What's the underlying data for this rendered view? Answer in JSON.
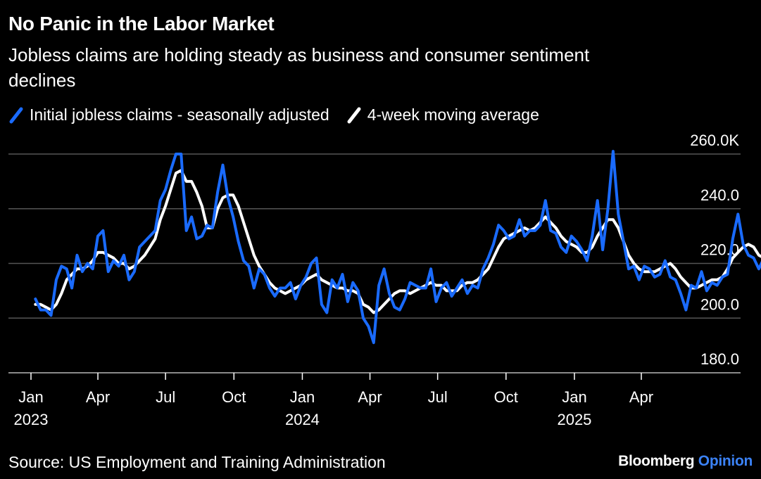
{
  "title": "No Panic in the Labor Market",
  "subtitle": "Jobless claims are holding steady as business and consumer sentiment declines",
  "source": "Source: US Employment and Training Administration",
  "brand": {
    "name": "Bloomberg",
    "suffix": "Opinion"
  },
  "colors": {
    "claims": "#1a6bff",
    "average": "#ffffff",
    "grid": "#555555",
    "background": "#000000"
  },
  "chart_data": {
    "type": "line",
    "grid": true,
    "legend_placement": "top-left",
    "ylim": [
      180,
      260
    ],
    "y_ticks": [
      {
        "value": 260,
        "label": "260.0K"
      },
      {
        "value": 240,
        "label": "240.0"
      },
      {
        "value": 220,
        "label": "220.0"
      },
      {
        "value": 200,
        "label": "200.0"
      },
      {
        "value": 180,
        "label": "180.0"
      }
    ],
    "x_ticks": [
      {
        "date": "2023-01-01",
        "label": "Jan",
        "year": "2023"
      },
      {
        "date": "2023-04-01",
        "label": "Apr",
        "year": ""
      },
      {
        "date": "2023-07-01",
        "label": "Jul",
        "year": ""
      },
      {
        "date": "2023-10-01",
        "label": "Oct",
        "year": ""
      },
      {
        "date": "2024-01-01",
        "label": "Jan",
        "year": "2024"
      },
      {
        "date": "2024-04-01",
        "label": "Apr",
        "year": ""
      },
      {
        "date": "2024-07-01",
        "label": "Jul",
        "year": ""
      },
      {
        "date": "2024-10-01",
        "label": "Oct",
        "year": ""
      },
      {
        "date": "2025-01-01",
        "label": "Jan",
        "year": "2025"
      },
      {
        "date": "2025-04-01",
        "label": "Apr",
        "year": ""
      }
    ],
    "series": [
      {
        "name": "Initial jobless claims - seasonally adjusted",
        "x_start": "2023-01-07",
        "x_step_days": 7,
        "values": [
          207,
          203,
          203,
          201,
          214,
          219,
          218,
          211,
          223,
          217,
          220,
          218,
          230,
          232,
          217,
          221,
          219,
          223,
          214,
          217,
          226,
          228,
          230,
          232,
          243,
          247,
          254,
          260,
          260,
          232,
          237,
          229,
          230,
          234,
          233,
          246,
          256,
          244,
          237,
          228,
          221,
          219,
          211,
          218,
          216,
          211,
          208,
          211,
          211,
          213,
          207,
          212,
          215,
          220,
          222,
          205,
          202,
          214,
          211,
          216,
          206,
          213,
          210,
          200,
          197,
          191,
          212,
          218,
          209,
          204,
          203,
          207,
          213,
          212,
          211,
          211,
          218,
          206,
          211,
          213,
          208,
          211,
          214,
          209,
          212,
          211,
          218,
          222,
          227,
          234,
          232,
          229,
          230,
          236,
          230,
          232,
          232,
          234,
          243,
          232,
          231,
          226,
          224,
          230,
          228,
          225,
          221,
          230,
          243,
          225,
          240,
          261,
          238,
          228,
          218,
          219,
          214,
          219,
          218,
          215,
          216,
          221,
          215,
          214,
          209,
          203,
          212,
          211,
          217,
          210,
          213,
          212,
          215,
          216,
          229,
          238,
          227,
          223,
          222,
          218,
          222,
          216,
          217,
          220,
          215,
          222,
          222
        ]
      },
      {
        "name": "4-week moving average",
        "x_start": "2023-01-07",
        "x_step_days": 7,
        "values": [
          205,
          205,
          204,
          203,
          205,
          209,
          214,
          216,
          218,
          218,
          219,
          221,
          224,
          224,
          223,
          222,
          220,
          220,
          218,
          219,
          221,
          223,
          226,
          229,
          236,
          241,
          247,
          253,
          254,
          250,
          250,
          246,
          241,
          233,
          233,
          240,
          244,
          245,
          245,
          241,
          235,
          229,
          223,
          219,
          216,
          213,
          211,
          210,
          209,
          210,
          211,
          212,
          214,
          215,
          216,
          214,
          213,
          212,
          211,
          211,
          210,
          210,
          209,
          205,
          204,
          202,
          203,
          205,
          207,
          209,
          210,
          210,
          209,
          210,
          211,
          212,
          213,
          212,
          212,
          210,
          210,
          210,
          212,
          213,
          213,
          214,
          216,
          218,
          222,
          226,
          229,
          230,
          231,
          232,
          233,
          232,
          233,
          235,
          237,
          235,
          233,
          230,
          228,
          227,
          226,
          224,
          224,
          226,
          230,
          233,
          236,
          236,
          233,
          228,
          223,
          220,
          218,
          217,
          217,
          217,
          218,
          219,
          220,
          218,
          215,
          213,
          211,
          211,
          212,
          213,
          214,
          214,
          215,
          218,
          222,
          224,
          226,
          227,
          226,
          223,
          222,
          221,
          221,
          220,
          219,
          220,
          220
        ]
      }
    ]
  }
}
